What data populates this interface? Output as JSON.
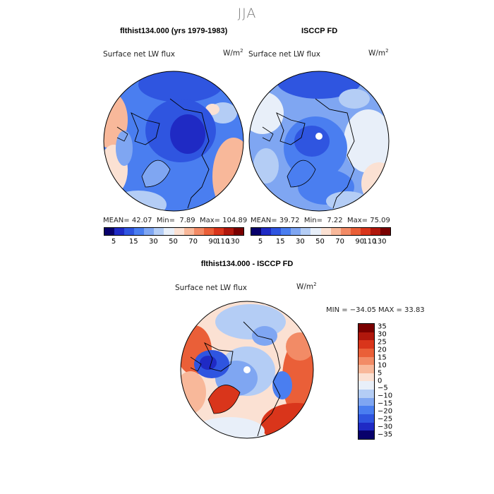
{
  "title": "JJA",
  "panels": {
    "left": {
      "heading": "flthist134.000 (yrs 1979-1983)",
      "label": "Surface net LW flux",
      "units": "W/m",
      "units_sup": "2",
      "stats": {
        "mean_label": "MEAN=",
        "mean": "42.07",
        "min_label": "Min=",
        "min": "7.89",
        "max_label": "Max=",
        "max": "104.89"
      }
    },
    "right": {
      "heading": "ISCCP FD",
      "label": "Surface net LW flux",
      "units": "W/m",
      "units_sup": "2",
      "stats": {
        "mean_label": "MEAN=",
        "mean": "39.72",
        "min_label": "Min=",
        "min": "7.22",
        "max_label": "Max=",
        "max": "75.09"
      }
    },
    "diff": {
      "heading": "flthist134.000 - ISCCP FD",
      "label": "Surface net LW flux",
      "units": "W/m",
      "units_sup": "2",
      "stats_line": "MIN = −34.05  MAX =   33.83"
    }
  },
  "colorbar_abs": {
    "colors": [
      "#08006b",
      "#1f2ac4",
      "#2f55e0",
      "#4a7ef0",
      "#7fa6f2",
      "#b4cdf5",
      "#e8eff9",
      "#fbe1d3",
      "#f8b89a",
      "#f28b66",
      "#ea5f38",
      "#d9351b",
      "#b0170c",
      "#7a0000"
    ],
    "tick_labels": [
      "5",
      "15",
      "30",
      "50",
      "70",
      "90",
      "110",
      "130"
    ]
  },
  "colorbar_diff": {
    "colors": [
      "#7a0000",
      "#b0170c",
      "#d9351b",
      "#ea5f38",
      "#f28b66",
      "#f8b89a",
      "#fbe1d3",
      "#e8eff9",
      "#b4cdf5",
      "#7fa6f2",
      "#4a7ef0",
      "#2f55e0",
      "#1f2ac4",
      "#08006b"
    ],
    "tick_labels": [
      "35",
      "30",
      "25",
      "20",
      "15",
      "10",
      "5",
      "0",
      "−5",
      "−10",
      "−15",
      "−20",
      "−25",
      "−30",
      "−35"
    ]
  },
  "chart_data": [
    {
      "type": "heatmap",
      "title": "flthist134.000 (yrs 1979-1983)",
      "subtitle": "Surface net LW flux (W/m2)",
      "projection": "north polar stereographic",
      "stats": {
        "mean": 42.07,
        "min": 7.89,
        "max": 104.89
      },
      "levels": [
        5,
        15,
        30,
        50,
        70,
        90,
        110,
        130
      ]
    },
    {
      "type": "heatmap",
      "title": "ISCCP FD",
      "subtitle": "Surface net LW flux (W/m2)",
      "projection": "north polar stereographic",
      "stats": {
        "mean": 39.72,
        "min": 7.22,
        "max": 75.09
      },
      "levels": [
        5,
        15,
        30,
        50,
        70,
        90,
        110,
        130
      ]
    },
    {
      "type": "heatmap",
      "title": "flthist134.000 - ISCCP FD",
      "subtitle": "Surface net LW flux (W/m2)",
      "projection": "north polar stereographic",
      "stats": {
        "min": -34.05,
        "max": 33.83
      },
      "levels": [
        -35,
        -30,
        -25,
        -20,
        -15,
        -10,
        -5,
        0,
        5,
        10,
        15,
        20,
        25,
        30,
        35
      ]
    }
  ]
}
